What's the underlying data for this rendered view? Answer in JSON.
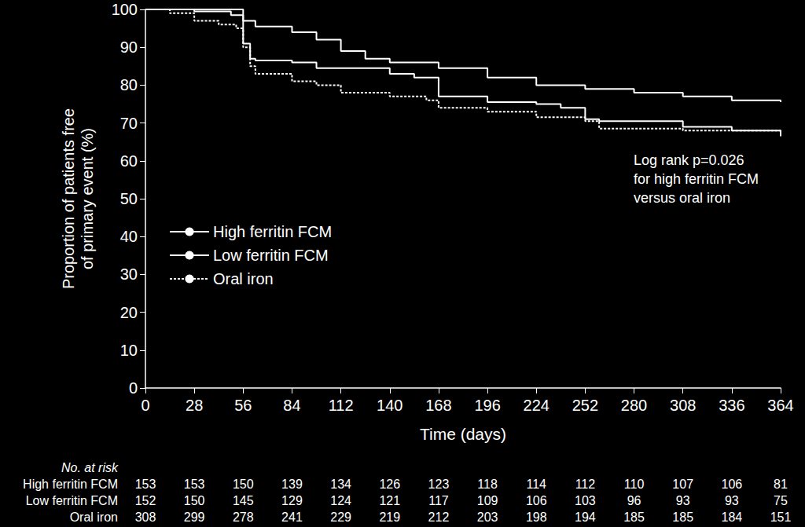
{
  "chart_data": {
    "type": "line",
    "step": true,
    "xlabel": "Time (days)",
    "ylabel": "Proportion of patients free\nof primary event (%)",
    "xlim": [
      0,
      364
    ],
    "xticks": [
      0,
      28,
      56,
      84,
      112,
      140,
      168,
      196,
      224,
      252,
      280,
      308,
      336,
      364
    ],
    "ylim": [
      0,
      100
    ],
    "yticks": [
      0,
      10,
      20,
      30,
      40,
      50,
      60,
      70,
      80,
      90,
      100
    ],
    "grid": false,
    "legend": "left",
    "annotation": "Log rank p=0.026\nfor high ferritin FCM\nversus oral iron",
    "series": [
      {
        "name": "High ferritin FCM",
        "color": "#ffffff",
        "line_style": "solid",
        "x": [
          0,
          56,
          63,
          84,
          98,
          112,
          126,
          140,
          168,
          196,
          224,
          252,
          280,
          308,
          336,
          364
        ],
        "values": [
          100,
          97,
          95.5,
          94,
          92,
          89,
          87,
          86,
          84.5,
          82,
          80,
          79,
          78,
          77,
          76,
          75.5
        ]
      },
      {
        "name": "Low ferritin FCM",
        "color": "#ffffff",
        "line_style": "solid",
        "x": [
          0,
          28,
          49,
          56,
          60,
          63,
          84,
          98,
          140,
          154,
          168,
          196,
          224,
          238,
          252,
          260,
          308,
          336,
          364
        ],
        "values": [
          100,
          99.5,
          98.5,
          91,
          87,
          86.5,
          86,
          84.5,
          83,
          82,
          77,
          75.5,
          75,
          74,
          71,
          70.5,
          69,
          68,
          66.5
        ]
      },
      {
        "name": "Oral iron",
        "color": "#ffffff",
        "line_style": "dotted",
        "x": [
          0,
          14,
          28,
          42,
          52,
          56,
          60,
          63,
          84,
          98,
          112,
          140,
          161,
          168,
          196,
          224,
          252,
          260,
          308,
          336,
          364
        ],
        "values": [
          100,
          99,
          97,
          96,
          95,
          90,
          85,
          83,
          81,
          80,
          78,
          77,
          76,
          74,
          73,
          71.5,
          70.5,
          68.5,
          68,
          68,
          67.5
        ]
      }
    ],
    "risk_table": {
      "title": "No. at risk",
      "x": [
        0,
        28,
        56,
        84,
        112,
        140,
        168,
        196,
        224,
        252,
        280,
        308,
        336,
        364
      ],
      "rows": [
        {
          "name": "High ferritin FCM",
          "values": [
            153,
            153,
            150,
            139,
            134,
            126,
            123,
            118,
            114,
            112,
            110,
            107,
            106,
            81
          ]
        },
        {
          "name": "Low ferritin FCM",
          "values": [
            152,
            150,
            145,
            129,
            124,
            121,
            117,
            109,
            106,
            103,
            96,
            93,
            93,
            75
          ]
        },
        {
          "name": "Oral iron",
          "values": [
            308,
            299,
            278,
            241,
            229,
            219,
            212,
            203,
            198,
            194,
            185,
            185,
            184,
            151
          ]
        }
      ]
    }
  }
}
